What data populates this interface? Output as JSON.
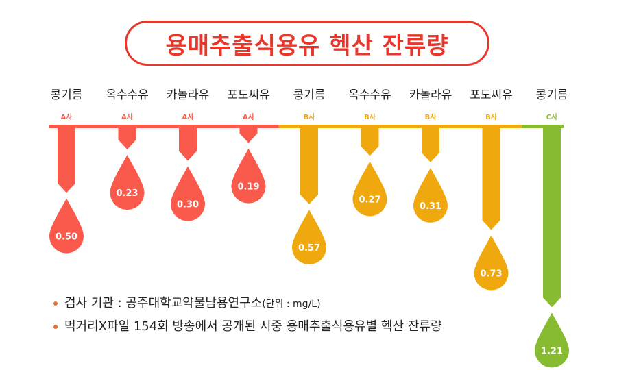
{
  "title": "용매추출식용유 헥산 잔류량",
  "notes": {
    "source_prefix": "검사 기관 : 공주대학교약물남용연구소",
    "unit": "(단위 : mg/L)",
    "broadcast": "먹거리X파일 154회 방송에서 공개된 시중 용매추출식용유별 헥산 잔류량"
  },
  "colors": {
    "A": "#fa5a4c",
    "B": "#f0a80f",
    "C": "#87bb31",
    "title": "#e8362b",
    "bullet": "#f0702d"
  },
  "chart_data": {
    "type": "bar",
    "title": "용매추출식용유 헥산 잔류량",
    "unit": "mg/L",
    "categories": [
      "콩기름",
      "옥수수유",
      "카놀라유",
      "포도씨유",
      "콩기름",
      "옥수수유",
      "카놀라유",
      "포도씨유",
      "콩기름"
    ],
    "companies": [
      "A사",
      "A사",
      "A사",
      "A사",
      "B사",
      "B사",
      "B사",
      "B사",
      "C사"
    ],
    "values": [
      0.5,
      0.23,
      0.3,
      0.19,
      0.57,
      0.27,
      0.31,
      0.73,
      1.21
    ],
    "value_labels": [
      "0.50",
      "0.23",
      "0.30",
      "0.19",
      "0.57",
      "0.27",
      "0.31",
      "0.73",
      "1.21"
    ],
    "group_keys": [
      "A",
      "A",
      "A",
      "A",
      "B",
      "B",
      "B",
      "B",
      "C"
    ]
  }
}
